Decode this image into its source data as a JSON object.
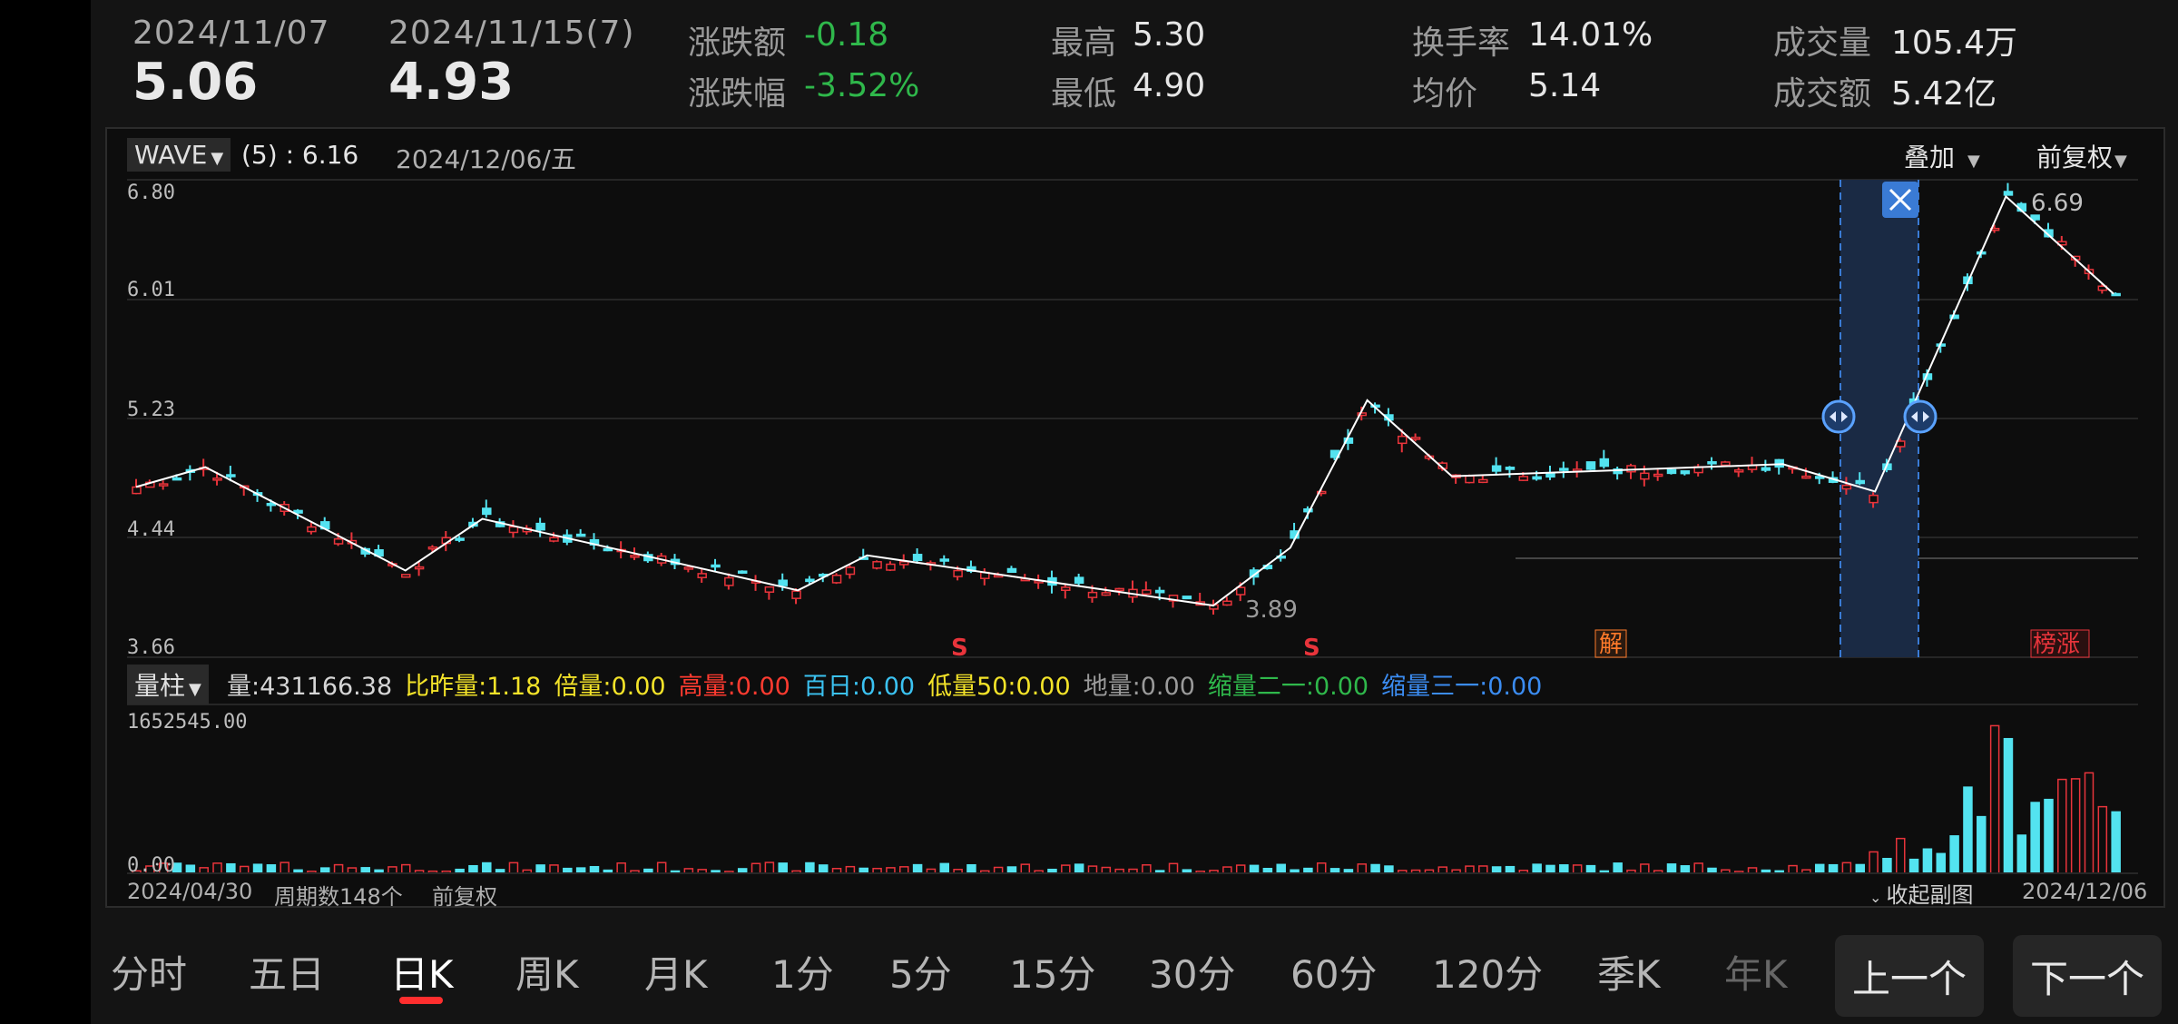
{
  "header": {
    "date1": "2024/11/07",
    "price1": "5.06",
    "date2": "2024/11/15(7)",
    "price2": "4.93",
    "stats": [
      {
        "label": "涨跌额",
        "value": "-0.18",
        "color": "#2fb84b"
      },
      {
        "label": "涨跌幅",
        "value": "-3.52%",
        "color": "#2fb84b"
      },
      {
        "label": "最高",
        "value": "5.30"
      },
      {
        "label": "最低",
        "value": "4.90"
      },
      {
        "label": "换手率",
        "value": "14.01%"
      },
      {
        "label": "均价",
        "value": "5.14"
      },
      {
        "label": "成交量",
        "value": "105.4万"
      },
      {
        "label": "成交额",
        "value": "5.42亿"
      }
    ]
  },
  "chart": {
    "indicator_name": "WAVE",
    "indicator_value": "(5) : 6.16",
    "date_display": "2024/12/06/五",
    "overlay_label": "叠加",
    "adjust_label": "前复权",
    "y_ticks": [
      "6.80",
      "6.01",
      "5.23",
      "4.44",
      "3.66"
    ],
    "high_label": "6.69",
    "low_label": "3.89",
    "markers": [
      "S",
      "S",
      "解",
      "榜涨"
    ],
    "close_icon": "close-icon"
  },
  "volume": {
    "type_label": "量柱",
    "items": [
      {
        "label": "量:",
        "value": "431166.38",
        "color": "#d6d6d6"
      },
      {
        "label": "比昨量:",
        "value": "1.18",
        "color": "#f3e329"
      },
      {
        "label": "倍量:",
        "value": "0.00",
        "color": "#f3e329"
      },
      {
        "label": "高量:",
        "value": "0.00",
        "color": "#ff3b30"
      },
      {
        "label": "百日:",
        "value": "0.00",
        "color": "#3bc2f1"
      },
      {
        "label": "低量50:",
        "value": "0.00",
        "color": "#f3e329"
      },
      {
        "label": "地量:",
        "value": "0.00",
        "color": "#9a9a9a"
      },
      {
        "label": "缩量二一:",
        "value": "0.00",
        "color": "#2fb84b"
      },
      {
        "label": "缩量三一:",
        "value": "0.00",
        "color": "#3b8cf1"
      }
    ],
    "max_label": "1652545.00",
    "zero_label": "0.00"
  },
  "footer": {
    "start_date": "2024/04/30",
    "period_count": "周期数148个",
    "adjust": "前复权",
    "collapse": "收起副图",
    "end_date": "2024/12/06"
  },
  "tabs": [
    "分时",
    "五日",
    "日K",
    "周K",
    "月K",
    "1分",
    "5分",
    "15分",
    "30分",
    "60分",
    "120分",
    "季K",
    "年K"
  ],
  "active_tab": "日K",
  "nav": {
    "prev": "上一个",
    "next": "下一个"
  },
  "colors": {
    "up": "#e8343b",
    "down": "#53e3f0",
    "accent": "#ff2e2e",
    "selection": "#1a2a44"
  }
}
